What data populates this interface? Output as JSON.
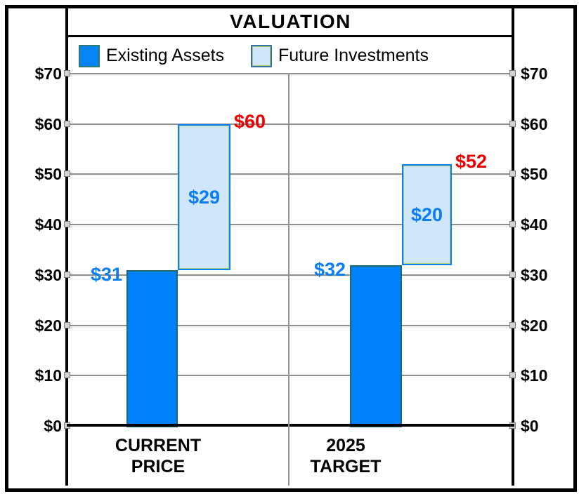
{
  "title": "VALUATION",
  "legend": {
    "items": [
      {
        "label": "Existing Assets",
        "swatch_fill": "#0081f9",
        "swatch_border": "#1d6b6e"
      },
      {
        "label": "Future Investments",
        "swatch_fill": "#d0e6fa",
        "swatch_border": "#33719f"
      }
    ]
  },
  "colors": {
    "existing_fill": "#0081f9",
    "existing_border": "#1d6b6e",
    "future_fill": "#d0e6fa",
    "future_border": "#0b80f2",
    "future_inner_border": "#abce7c",
    "segment_label_blue": "#0b7ff2",
    "total_label_red": "#ee0000",
    "gridline_gray": "#909090"
  },
  "chart_data": {
    "type": "bar",
    "title": "VALUATION",
    "categories": [
      "CURRENT PRICE",
      "2025 TARGET"
    ],
    "category_label_lines": [
      [
        "CURRENT",
        "PRICE"
      ],
      [
        "2025",
        "TARGET"
      ]
    ],
    "series": [
      {
        "name": "Existing Assets",
        "values": [
          31,
          32
        ]
      },
      {
        "name": "Future Investments",
        "values": [
          29,
          20
        ]
      }
    ],
    "totals": [
      60,
      52
    ],
    "existing_labels": [
      "$31",
      "$32"
    ],
    "future_labels": [
      "$29",
      "$20"
    ],
    "total_labels": [
      "$60",
      "$52"
    ],
    "ylim": [
      0,
      70
    ],
    "y_tick_step": 10,
    "y_tick_labels": [
      "$0",
      "$10",
      "$20",
      "$30",
      "$40",
      "$50",
      "$60",
      "$70"
    ],
    "y_axis_sides": [
      "left",
      "right"
    ],
    "grid": true,
    "legend_position": "top"
  }
}
